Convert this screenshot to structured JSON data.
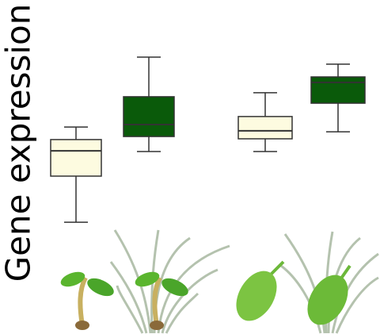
{
  "chart_data": {
    "type": "box",
    "ylabel": "Gene expression",
    "ylim": [
      0,
      100
    ],
    "boxes": [
      {
        "color": "#fdfbe0",
        "min": 8.3,
        "q1": 32.5,
        "median": 45.8,
        "q3": 51.7,
        "max": 58.3
      },
      {
        "color": "#0a5a0a",
        "min": 45.4,
        "q1": 53.3,
        "median": 59.6,
        "q3": 74.2,
        "max": 95.0
      },
      {
        "color": "#fdfbe0",
        "min": 45.4,
        "q1": 52.1,
        "median": 56.3,
        "q3": 63.8,
        "max": 76.3
      },
      {
        "color": "#0a5a0a",
        "min": 55.8,
        "q1": 70.8,
        "median": 81.7,
        "q3": 84.6,
        "max": 91.3
      }
    ]
  }
}
